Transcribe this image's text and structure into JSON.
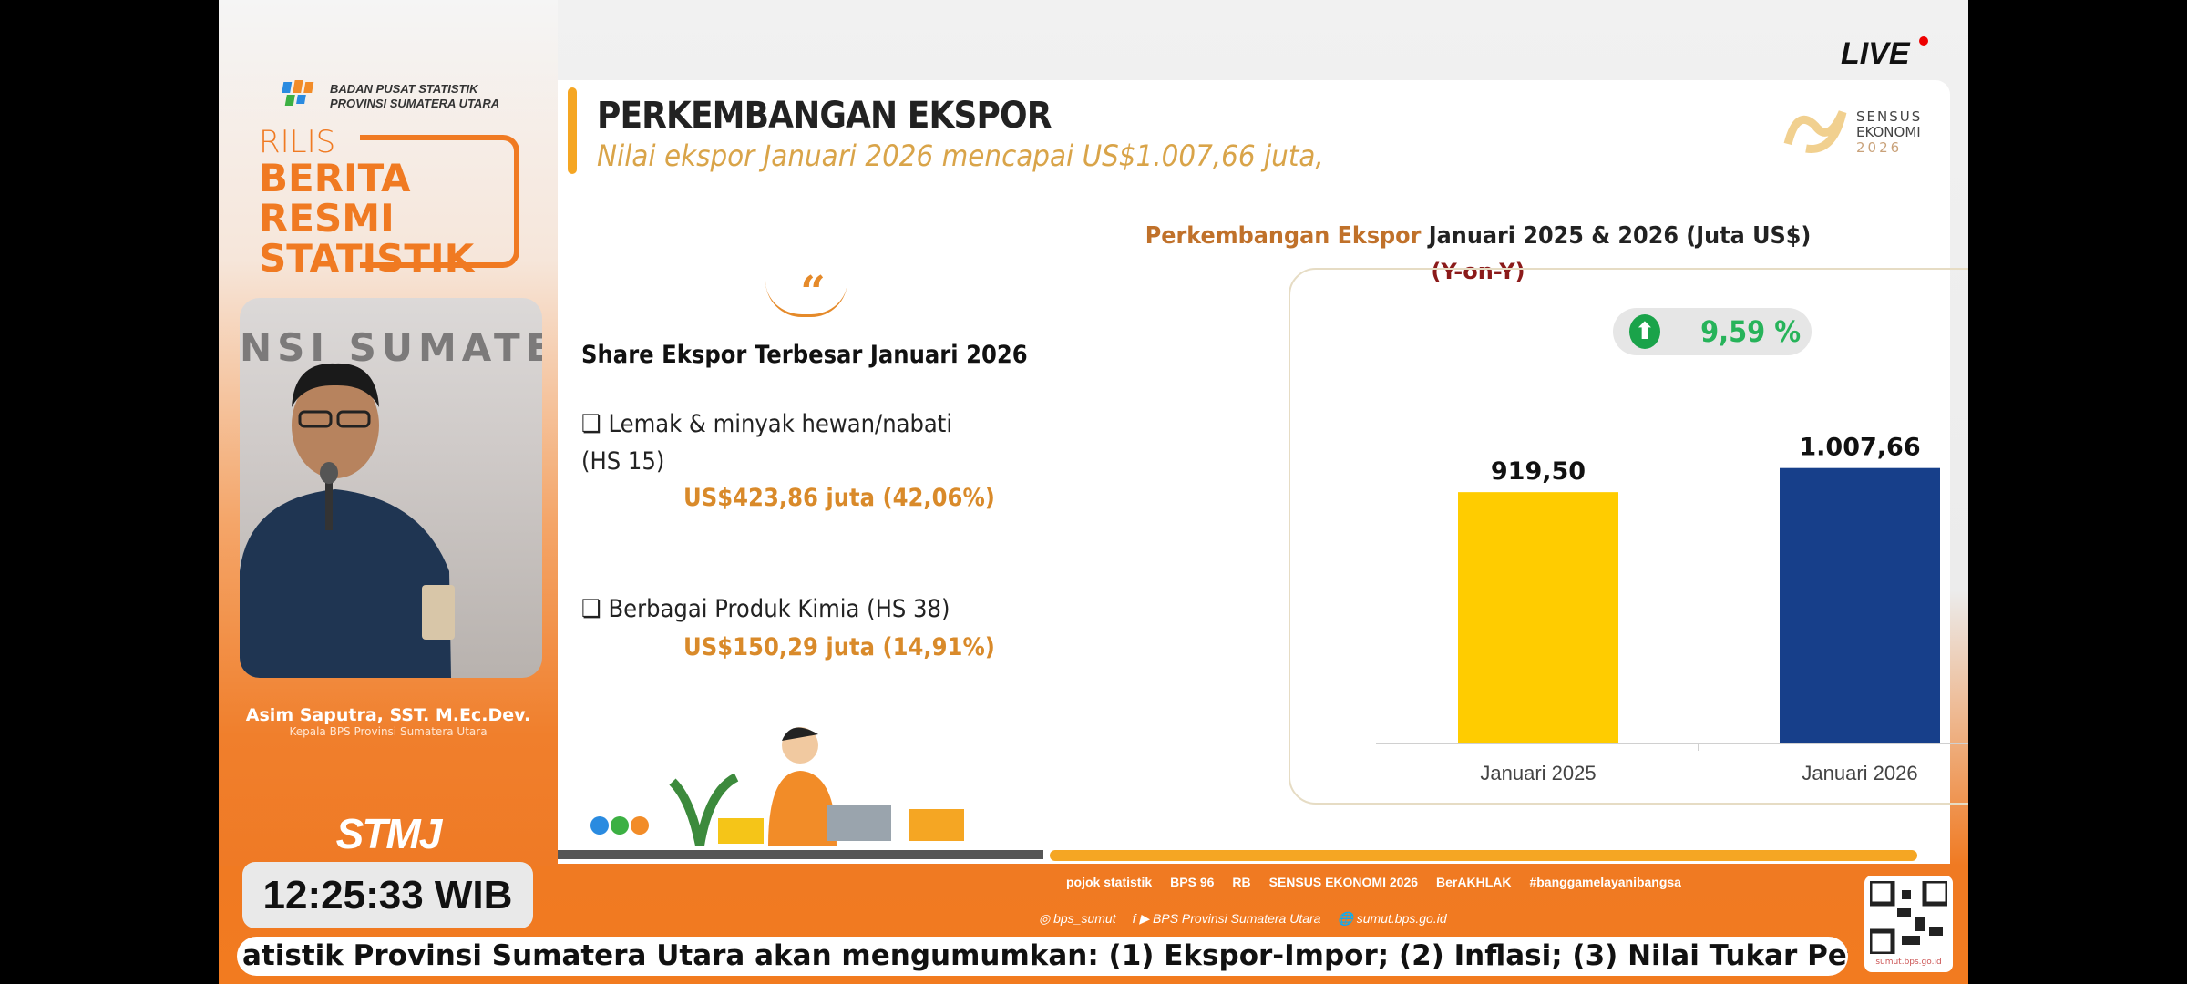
{
  "branding": {
    "org_line1": "BADAN PUSAT STATISTIK",
    "org_line2": "PROVINSI SUMATERA UTARA",
    "rilis": "RILIS",
    "brs_line1": "BERITA",
    "brs_line2": "RESMI",
    "brs_line3": "STATISTIK",
    "live": "LIVE",
    "stmj": "STMJ",
    "sensus_logo": "SENSUS EKONOMI 2026"
  },
  "speaker": {
    "name": "Asim Saputra, SST. M.Ec.Dev.",
    "role": "Kepala BPS Provinsi Sumatera Utara"
  },
  "clock": "12:25:33 WIB",
  "slide": {
    "title": "PERKEMBANGAN EKSPOR",
    "subtitle": "Nilai ekspor Januari 2026 mencapai US$1.007,66 juta,",
    "quote_mark": "“",
    "share_title": "Share Ekspor Terbesar Januari 2026",
    "items": [
      {
        "label_line1": "❏ Lemak & minyak hewan/nabati",
        "label_line2": "(HS 15)",
        "value": "US$423,86 juta (42,06%)"
      },
      {
        "label_line1": "❏ Berbagai Produk Kimia (HS 38)",
        "value": "US$150,29 juta (14,91%)"
      }
    ]
  },
  "chart_data": {
    "type": "bar",
    "title_highlight": "Perkembangan Ekspor",
    "title_rest": "Januari 2025 & 2026 (Juta US$)",
    "subtitle": "(Y-on-Y)",
    "yoy_change": "9,59 %",
    "yoy_direction": "up",
    "categories": [
      "Januari 2025",
      "Januari 2026"
    ],
    "values": [
      919.5,
      1007.66
    ],
    "value_labels": [
      "919,50",
      "1.007,66"
    ],
    "colors": [
      "#ffcc00",
      "#173f8a"
    ],
    "ylim": [
      0,
      1100
    ],
    "grid": false
  },
  "footer": {
    "ticker": "atistik Provinsi Sumatera Utara akan mengumumkan: (1) Ekspor-Impor; (2) Inflasi; (3) Nilai Tukar Petar",
    "sponsors": [
      "pojok statistik",
      "BPS 96",
      "RB",
      "SENSUS EKONOMI 2026",
      "BerAKHLAK",
      "#banggamelayanibangsa"
    ],
    "instagram": "bps_sumut",
    "youtube": "BPS Provinsi Sumatera Utara",
    "website": "sumut.bps.go.id",
    "qr_url": "sumut.bps.go.id"
  }
}
